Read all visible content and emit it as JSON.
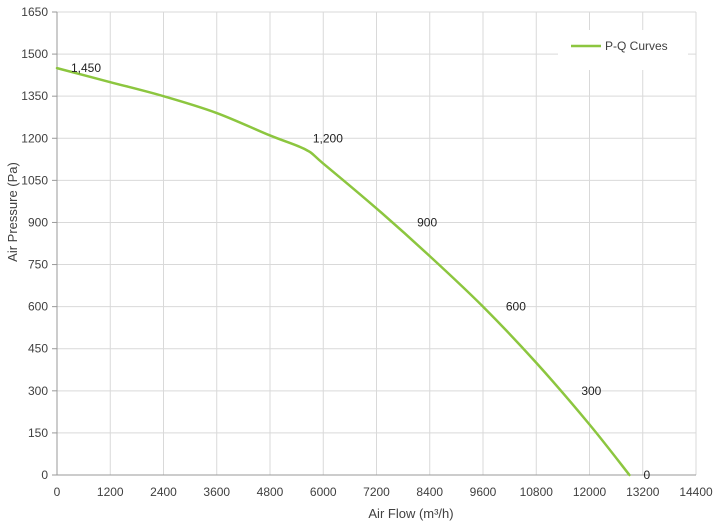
{
  "chart_data": {
    "type": "line",
    "title": "",
    "xlabel": "Air Flow  (m³/h)",
    "ylabel": "Air Pressure  (Pa)",
    "xlim": [
      0,
      14400
    ],
    "ylim": [
      0,
      1650
    ],
    "x_ticks": [
      "0",
      "1200",
      "2400",
      "3600",
      "4800",
      "6000",
      "7200",
      "8400",
      "9600",
      "10800",
      "12000",
      "13200",
      "14400"
    ],
    "y_ticks": [
      "0",
      "150",
      "300",
      "450",
      "600",
      "750",
      "900",
      "1050",
      "1200",
      "1350",
      "1500",
      "1650"
    ],
    "grid": true,
    "legend_position": "top-right",
    "colors": {
      "series": "#8cc63f",
      "grid": "#d9d9d9",
      "text": "#404040"
    },
    "series": [
      {
        "name": "P-Q Curves",
        "x": [
          0,
          1200,
          2400,
          3600,
          4800,
          5600,
          6000,
          7200,
          8400,
          9600,
          10800,
          12000,
          12900
        ],
        "y": [
          1450,
          1400,
          1350,
          1290,
          1210,
          1160,
          1110,
          950,
          780,
          600,
          400,
          180,
          0
        ]
      }
    ],
    "annotations": [
      {
        "text": "1,450",
        "x": 0,
        "y": 1450
      },
      {
        "text": "1,200",
        "x": 5450,
        "y": 1200
      },
      {
        "text": "900",
        "x": 7800,
        "y": 900
      },
      {
        "text": "600",
        "x": 9800,
        "y": 600
      },
      {
        "text": "300",
        "x": 11500,
        "y": 300
      },
      {
        "text": "0",
        "x": 12900,
        "y": 0
      }
    ]
  }
}
